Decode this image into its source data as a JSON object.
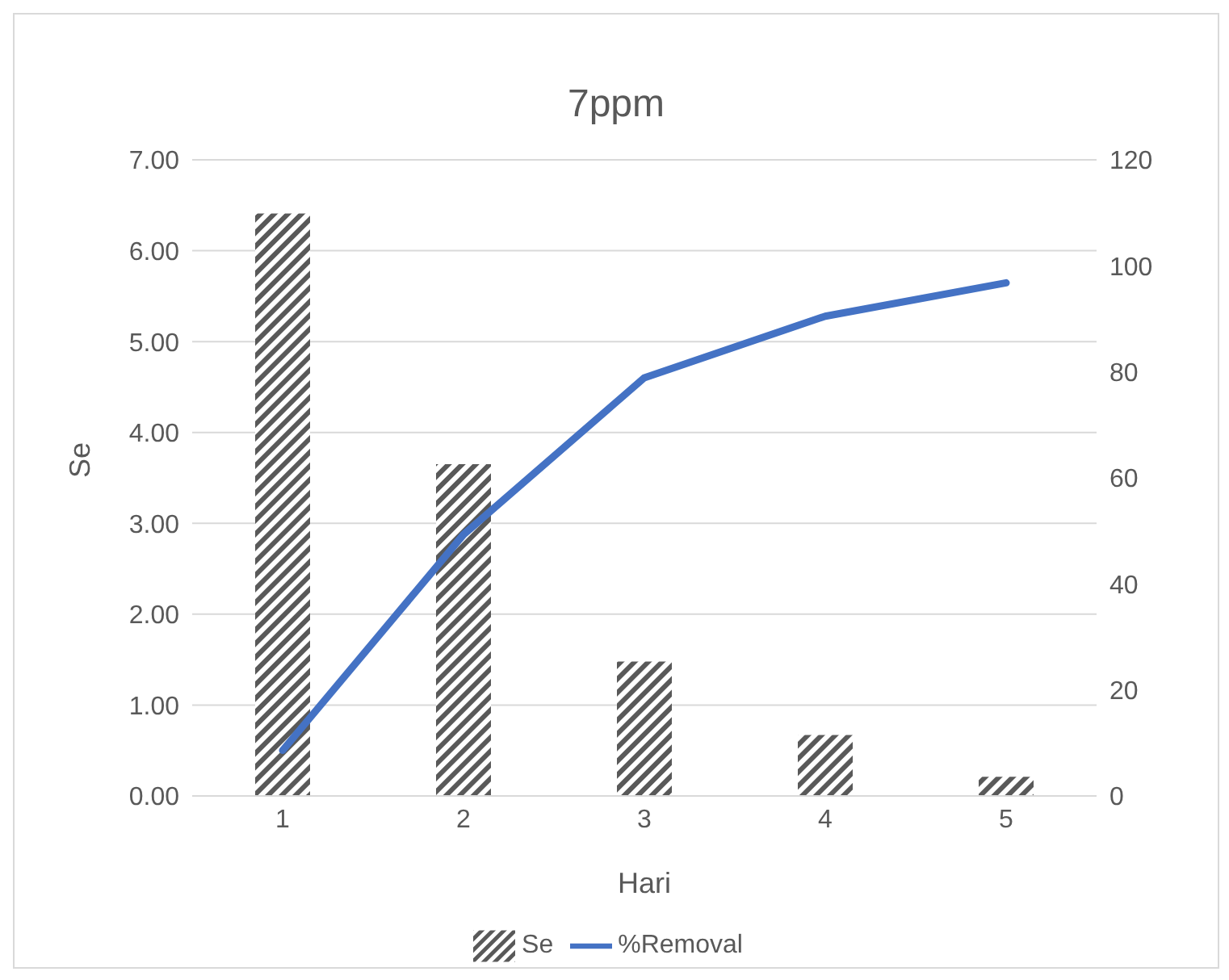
{
  "chart_data": {
    "type": "bar",
    "title": "7ppm",
    "xlabel": "Hari",
    "ylabel": "Se",
    "categories": [
      "1",
      "2",
      "3",
      "4",
      "5"
    ],
    "series": [
      {
        "name": "Se",
        "color": "#595959",
        "values": [
          6.41,
          3.65,
          1.48,
          0.67,
          0.21
        ]
      },
      {
        "name": "%Removal",
        "type": "line",
        "axis": "y2",
        "color": "#4472c4",
        "values": [
          8.6,
          49.3,
          78.9,
          90.5,
          96.8
        ]
      }
    ],
    "ylim": [
      0,
      7
    ],
    "yticks": [
      {
        "value": 0,
        "label": "0.00"
      },
      {
        "value": 1,
        "label": "1.00"
      },
      {
        "value": 2,
        "label": "2.00"
      },
      {
        "value": 3,
        "label": "3.00"
      },
      {
        "value": 4,
        "label": "4.00"
      },
      {
        "value": 5,
        "label": "5.00"
      },
      {
        "value": 6,
        "label": "6.00"
      },
      {
        "value": 7,
        "label": "7.00"
      }
    ],
    "y2lim": [
      0,
      120
    ],
    "y2ticks": [
      0,
      20,
      40,
      60,
      80,
      100,
      120
    ],
    "grid": "y",
    "legend": "bottom",
    "marker": "none"
  }
}
